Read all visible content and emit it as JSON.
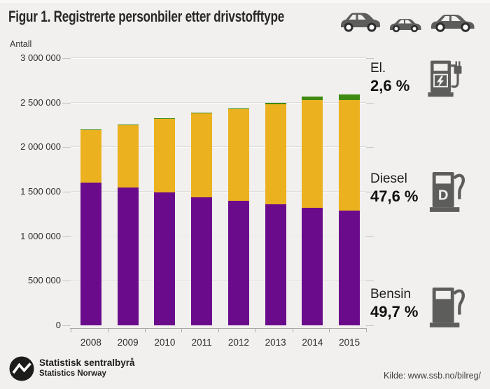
{
  "title": "Figur 1. Registrerte personbiler etter drivstofftype",
  "y_axis_label": "Antall",
  "source": "Kilde: www.ssb.no/bilreg/",
  "footer": {
    "org_name": "Statistisk sentralbyrå",
    "org_name_en": "Statistics Norway"
  },
  "header_icons": [
    "suv-car-icon",
    "compact-car-icon",
    "sedan-car-icon"
  ],
  "legend": [
    {
      "name": "El.",
      "pct": "2,6 %",
      "icon": "ev-charger-icon"
    },
    {
      "name": "Diesel",
      "pct": "47,6 %",
      "icon": "diesel-pump-icon"
    },
    {
      "name": "Bensin",
      "pct": "49,7 %",
      "icon": "petrol-pump-icon"
    }
  ],
  "colors": {
    "bensin": "#6a0b8c",
    "diesel": "#ecb11f",
    "el": "#3f8a10",
    "background": "#f1f0ee",
    "icon_gray": "#5d5d5b",
    "text_dark": "#2b2b2b"
  },
  "chart_data": {
    "type": "bar",
    "stacked": true,
    "title": "Figur 1. Registrerte personbiler etter drivstofftype",
    "ylabel": "Antall",
    "xlabel": "",
    "ylim": [
      0,
      3000000
    ],
    "grid": true,
    "legend_position": "right",
    "categories": [
      "2008",
      "2009",
      "2010",
      "2011",
      "2012",
      "2013",
      "2014",
      "2015"
    ],
    "series": [
      {
        "name": "Bensin",
        "color": "#6a0b8c",
        "values": [
          1600000,
          1545000,
          1490000,
          1440000,
          1395000,
          1355000,
          1320000,
          1290000
        ]
      },
      {
        "name": "Diesel",
        "color": "#ecb11f",
        "values": [
          600000,
          705000,
          830000,
          940000,
          1030000,
          1125000,
          1210000,
          1237000
        ]
      },
      {
        "name": "El",
        "color": "#3f8a10",
        "values": [
          3000,
          3500,
          4500,
          6000,
          10000,
          19000,
          42000,
          68000
        ]
      }
    ],
    "yticks": [
      {
        "value": 0,
        "label": "0"
      },
      {
        "value": 500000,
        "label": "500 000"
      },
      {
        "value": 1000000,
        "label": "1 000 000"
      },
      {
        "value": 1500000,
        "label": "1 500 000"
      },
      {
        "value": 2000000,
        "label": "2 000 000"
      },
      {
        "value": 2500000,
        "label": "2 500 000"
      },
      {
        "value": 3000000,
        "label": "3 000 000"
      }
    ]
  }
}
